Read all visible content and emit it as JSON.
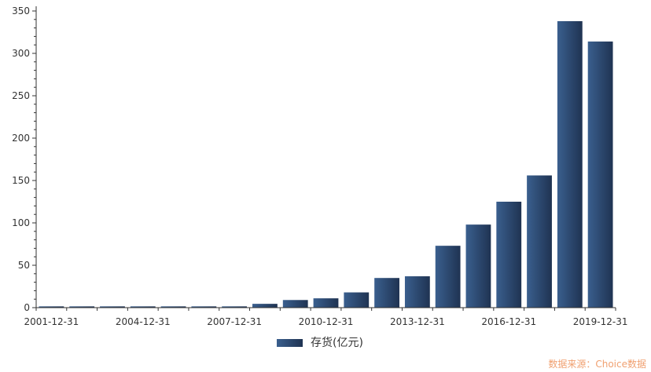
{
  "chart_data": {
    "type": "bar",
    "categories": [
      "2001-12-31",
      "2002-12-31",
      "2003-12-31",
      "2004-12-31",
      "2005-12-31",
      "2006-12-31",
      "2007-12-31",
      "2008-12-31",
      "2009-12-31",
      "2010-12-31",
      "2011-12-31",
      "2012-12-31",
      "2013-12-31",
      "2014-12-31",
      "2015-12-31",
      "2016-12-31",
      "2017-12-31",
      "2018-12-31",
      "2019-12-31"
    ],
    "x_tick_labels": [
      "2001-12-31",
      "2004-12-31",
      "2007-12-31",
      "2010-12-31",
      "2013-12-31",
      "2016-12-31",
      "2019-12-31"
    ],
    "series": [
      {
        "name": "存货(亿元)",
        "color": "#2e4a6e",
        "values": [
          1.5,
          1.5,
          1.5,
          1.5,
          1.5,
          1.5,
          1.5,
          4.5,
          9,
          11,
          18,
          35,
          37,
          73,
          98,
          125,
          156,
          338,
          314
        ]
      }
    ],
    "title": "",
    "xlabel": "",
    "ylabel": "",
    "ylim": [
      0,
      350
    ],
    "y_ticks": [
      0,
      50,
      100,
      150,
      200,
      250,
      300,
      350
    ],
    "grid": false,
    "legend_position": "bottom-center"
  },
  "source_note": "数据来源：Choice数据"
}
